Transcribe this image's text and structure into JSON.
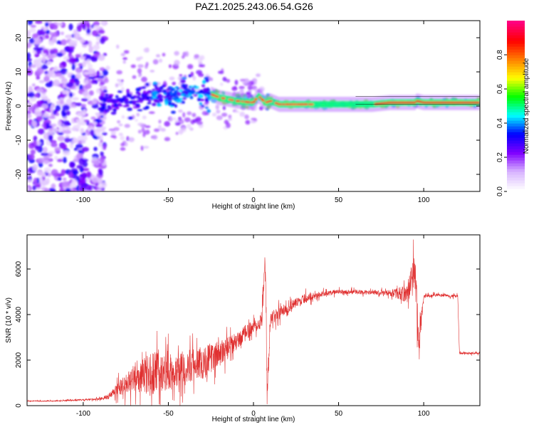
{
  "page_title": "PAZ1.2025.243.06.54.G26",
  "chart_data": [
    {
      "type": "heatmap",
      "title": "PAZ1.2025.243.06.54.G26",
      "xlabel": "Height of straight line (km)",
      "ylabel": "Frequency (Hz)",
      "xlim": [
        -133,
        133
      ],
      "ylim": [
        -25,
        25
      ],
      "xticks": [
        -100,
        -50,
        0,
        50,
        100
      ],
      "yticks": [
        -20,
        -10,
        0,
        10,
        20
      ],
      "colorbar": {
        "label": "Normalized spectral amplitude",
        "range": [
          0,
          1
        ],
        "ticks": [
          "0.0",
          "0.2",
          "0.4",
          "0.6",
          "0.8"
        ],
        "tick_values": [
          0,
          0.2,
          0.4,
          0.6,
          0.8
        ],
        "colors": [
          "#ffffff",
          "#d8b4ff",
          "#8000ff",
          "#0000ff",
          "#00ffff",
          "#00ff00",
          "#ffff00",
          "#ff8000",
          "#ff0000",
          "#ff0080"
        ]
      },
      "ridge": {
        "description": "dominant frequency track",
        "points": [
          [
            -90,
            1.5
          ],
          [
            -70,
            2
          ],
          [
            -50,
            3
          ],
          [
            -40,
            4
          ],
          [
            -30,
            4
          ],
          [
            -25,
            3.5
          ],
          [
            -20,
            2.5
          ],
          [
            -10,
            1.5
          ],
          [
            0,
            1
          ],
          [
            3,
            3
          ],
          [
            7,
            1
          ],
          [
            10,
            1.5
          ],
          [
            15,
            0.5
          ],
          [
            30,
            0.5
          ],
          [
            50,
            0.5
          ],
          [
            70,
            0.5
          ],
          [
            80,
            1
          ],
          [
            95,
            1
          ],
          [
            96,
            1.5
          ],
          [
            100,
            1
          ],
          [
            133,
            1
          ]
        ]
      },
      "noise_region_x": [
        -133,
        -87
      ]
    },
    {
      "type": "line",
      "xlabel": "Height of straight line (km)",
      "ylabel": "SNR (10 * v/v)",
      "xlim": [
        -133,
        133
      ],
      "ylim": [
        0,
        7500
      ],
      "xticks": [
        -100,
        -50,
        0,
        50,
        100
      ],
      "yticks": [
        0,
        2000,
        4000,
        6000
      ],
      "color": "#e03030",
      "series": [
        {
          "name": "SNR",
          "x": [
            -133,
            -120,
            -100,
            -90,
            -85,
            -80,
            -70,
            -60,
            -50,
            -40,
            -30,
            -20,
            -10,
            0,
            5,
            7,
            8,
            10,
            20,
            30,
            40,
            50,
            60,
            70,
            80,
            90,
            95,
            97,
            100,
            110,
            120,
            121,
            133
          ],
          "y": [
            200,
            200,
            250,
            300,
            400,
            700,
            1200,
            1400,
            1500,
            1700,
            1900,
            2300,
            2800,
            3500,
            3800,
            6500,
            500,
            3800,
            4300,
            4700,
            4900,
            5000,
            5000,
            4950,
            4950,
            4900,
            6000,
            2500,
            4800,
            4850,
            4800,
            2300,
            2300
          ],
          "noise_amp": [
            30,
            30,
            40,
            60,
            150,
            400,
            700,
            1200,
            1000,
            900,
            900,
            700,
            500,
            400,
            500,
            600,
            600,
            400,
            300,
            250,
            150,
            120,
            120,
            120,
            150,
            500,
            1200,
            1200,
            100,
            80,
            80,
            60,
            60
          ]
        }
      ]
    }
  ]
}
